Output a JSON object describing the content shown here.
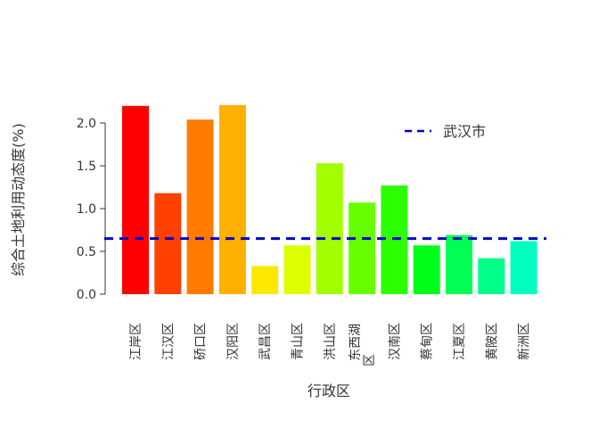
{
  "chart_data": {
    "type": "bar",
    "title": "",
    "xlabel": "行政区",
    "ylabel": "综合土地利用动态度(%)",
    "ylim": [
      0,
      2.2
    ],
    "yticks": [
      "0.0",
      "0.5",
      "1.0",
      "1.5",
      "2.0"
    ],
    "categories": [
      "江岸区",
      "江汉区",
      "硚口区",
      "汉阳区",
      "武昌区",
      "青山区",
      "洪山区",
      "东西湖区",
      "汉南区",
      "蔡甸区",
      "江夏区",
      "黄陂区",
      "新洲区"
    ],
    "values": [
      2.2,
      1.18,
      2.04,
      2.21,
      0.33,
      0.57,
      1.53,
      1.07,
      1.27,
      0.57,
      0.69,
      0.42,
      0.62
    ],
    "bar_colors": [
      "#FF0000",
      "#FF4000",
      "#FF7B00",
      "#FFB000",
      "#FFE800",
      "#DEFF00",
      "#A3FF00",
      "#67FF00",
      "#2CFF00",
      "#00FF18",
      "#00FF52",
      "#00FF88",
      "#00FFBF"
    ],
    "reference_line": {
      "label": "武汉市",
      "value": 0.65,
      "color": "#0000CD",
      "style": "dashed"
    },
    "legend": {
      "placement": "top-right",
      "entries": [
        "武汉市"
      ]
    },
    "grid": false
  }
}
